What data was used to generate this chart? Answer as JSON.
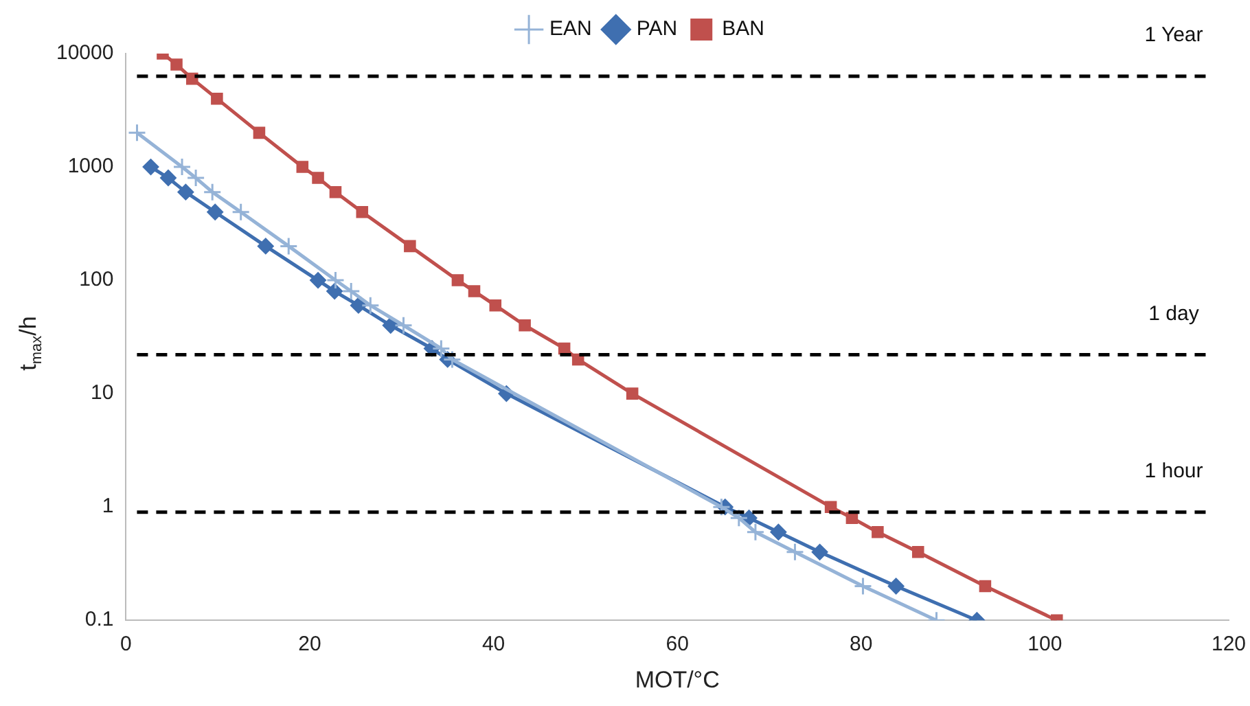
{
  "chart_data": {
    "type": "line",
    "xlabel": "MOT/°C",
    "ylabel": "t$_{max}$/h",
    "log": "y",
    "grid": false,
    "legend": "top",
    "line_style": "solid",
    "xlim": [
      0,
      120
    ],
    "xticks": [
      0,
      20,
      40,
      60,
      80,
      100,
      120
    ],
    "ylim": [
      0.1,
      10000
    ],
    "yticks": [
      {
        "value": 0.1,
        "label": "0.1"
      },
      1,
      10,
      100,
      1000,
      10000
    ],
    "ref_lines": [
      {
        "axis": "y",
        "value": 6300,
        "label": "1 Year",
        "color": "#000000",
        "line_style": "dashed"
      },
      {
        "axis": "y",
        "value": 22,
        "label": "1 day",
        "color": "#000000",
        "line_style": "dashed"
      },
      {
        "axis": "y",
        "value": 0.9,
        "label": "1 hour",
        "color": "#000000",
        "line_style": "dashed"
      }
    ],
    "series": [
      {
        "name": "EAN",
        "color": "#95b3d7",
        "marker": "cross",
        "x": [
          1.2,
          6.1,
          7.6,
          9.4,
          12.5,
          17.7,
          22.8,
          24.5,
          26.6,
          30.2,
          34.3,
          35.5,
          64.8,
          66.7,
          68.5,
          72.8,
          80.2,
          88.2
        ],
        "values": [
          2000,
          1000,
          800,
          600,
          400,
          200,
          100,
          80,
          60,
          40,
          25,
          20,
          1,
          0.8,
          0.6,
          0.4,
          0.2,
          0.1
        ]
      },
      {
        "name": "PAN",
        "color": "#3f6fb0",
        "marker": "diamond",
        "x": [
          2.7,
          4.6,
          6.5,
          9.7,
          15.2,
          20.9,
          22.7,
          25.3,
          28.8,
          33.3,
          35.0,
          41.4,
          65.2,
          67.8,
          71.0,
          75.5,
          83.8,
          92.6
        ],
        "values": [
          1000,
          800,
          600,
          400,
          200,
          100,
          80,
          60,
          40,
          25,
          20,
          10,
          1,
          0.8,
          0.6,
          0.4,
          0.2,
          0.1
        ]
      },
      {
        "name": "BAN",
        "color": "#c0504d",
        "marker": "square",
        "x": [
          4.0,
          5.5,
          7.2,
          9.9,
          14.5,
          19.2,
          20.9,
          22.8,
          25.7,
          30.9,
          36.1,
          37.9,
          40.2,
          43.4,
          47.7,
          49.2,
          55.1,
          76.7,
          79.0,
          81.8,
          86.2,
          93.5,
          101.3
        ],
        "values": [
          10000,
          8000,
          6000,
          4000,
          2000,
          1000,
          800,
          600,
          400,
          200,
          100,
          80,
          60,
          40,
          25,
          20,
          10,
          1,
          0.8,
          0.6,
          0.4,
          0.2,
          0.1
        ]
      }
    ]
  }
}
